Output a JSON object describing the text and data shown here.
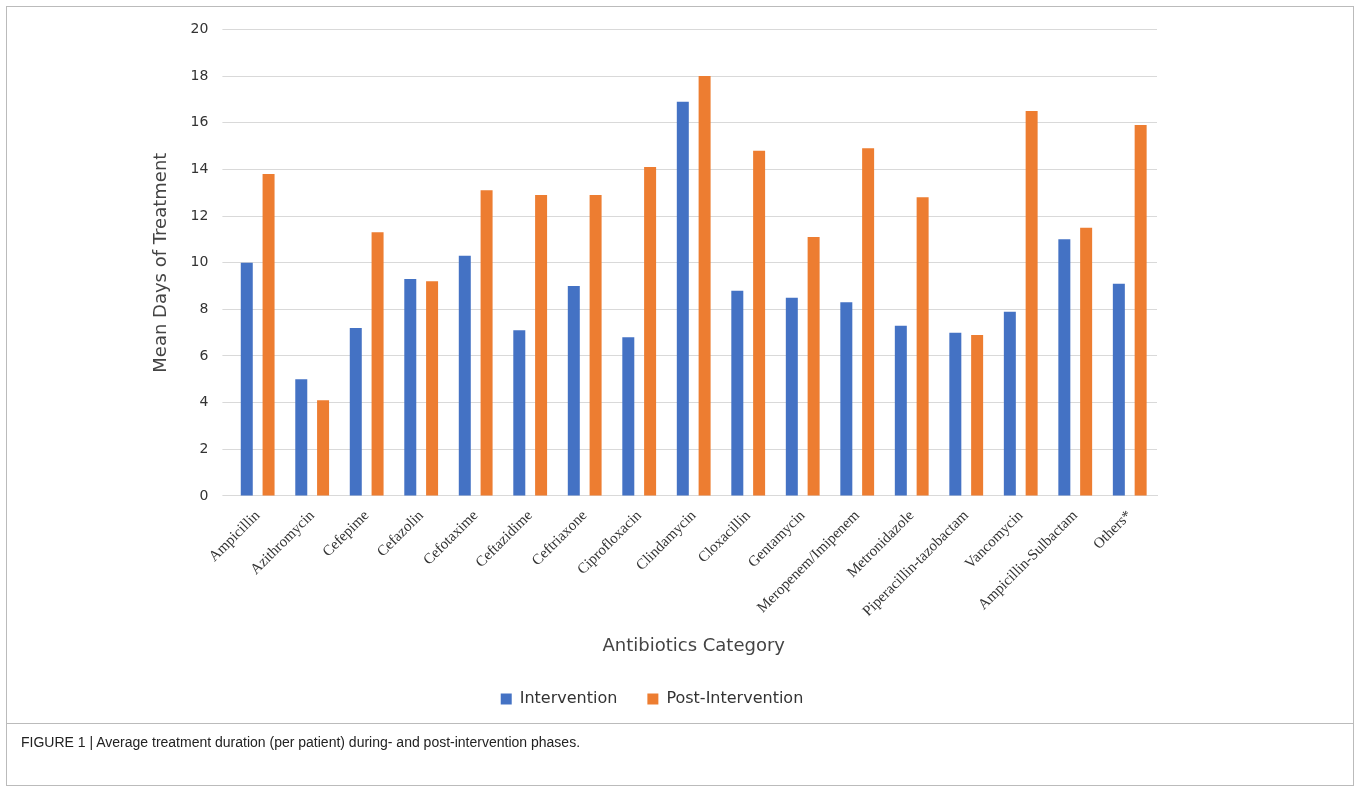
{
  "chart_data": {
    "type": "bar",
    "xlabel": "Antibiotics Category",
    "ylabel": "Mean Days of Treatment",
    "categories": [
      "Ampicillin",
      "Azithromycin",
      "Cefepime",
      "Cefazolin",
      "Cefotaxime",
      "Ceftazidime",
      "Ceftriaxone",
      "Ciprofloxacin",
      "Clindamycin",
      "Cloxacillin",
      "Gentamycin",
      "Meropenem/Imipenem",
      "Metronidazole",
      "Piperacillin-tazobactam",
      "Vancomycin",
      "Ampicillin-Sulbactam",
      "Others*"
    ],
    "series": [
      {
        "name": "Intervention",
        "color": "#4472c4",
        "values": [
          10.0,
          5.0,
          7.2,
          9.3,
          10.3,
          7.1,
          9.0,
          6.8,
          16.9,
          8.8,
          8.5,
          8.3,
          7.3,
          7.0,
          7.9,
          11.0,
          9.1
        ]
      },
      {
        "name": "Post-Intervention",
        "color": "#ed7d31",
        "values": [
          13.8,
          4.1,
          11.3,
          9.2,
          13.1,
          12.9,
          12.9,
          14.1,
          18.0,
          14.8,
          11.1,
          14.9,
          12.8,
          6.9,
          16.5,
          11.5,
          15.9
        ]
      }
    ],
    "ylim": [
      0,
      20
    ],
    "yticks": [
      0,
      2,
      4,
      6,
      8,
      10,
      12,
      14,
      16,
      18,
      20
    ],
    "grid": "y",
    "legend": "bottom",
    "annotations": [
      "FIGURE 1 | Average treatment duration (per patient) during- and post-intervention phases."
    ]
  }
}
